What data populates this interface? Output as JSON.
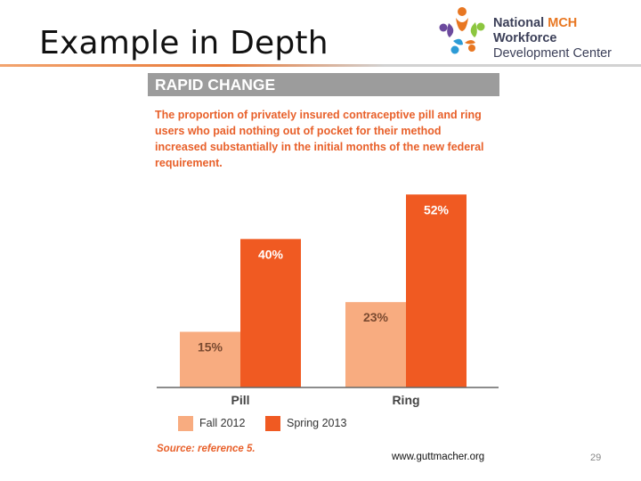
{
  "slide": {
    "title": "Example in Depth",
    "page_number": "29",
    "website": "www.guttmacher.org"
  },
  "logo": {
    "line1_prefix": "National ",
    "line1_accent": "MCH",
    "line1_suffix": " Workforce",
    "line2": "Development Center",
    "colors": [
      "#e87722",
      "#6c4a9e",
      "#2c9bd6",
      "#8cc63f",
      "#3b3f58"
    ]
  },
  "colors": {
    "fall_2012": "#f8ac80",
    "spring_2013": "#f05a22",
    "banner": "#9c9c9c",
    "accent_text": "#e8602a"
  },
  "chart_data": {
    "type": "bar",
    "banner": "RAPID CHANGE",
    "title": "The proportion of privately insured contraceptive pill and ring users who paid nothing out of pocket for their method increased substantially in the initial months of the new federal requirement.",
    "categories": [
      "Pill",
      "Ring"
    ],
    "series": [
      {
        "name": "Fall 2012",
        "values": [
          15,
          23
        ],
        "labels": [
          "15%",
          "23%"
        ]
      },
      {
        "name": "Spring 2013",
        "values": [
          40,
          52
        ],
        "labels": [
          "40%",
          "52%"
        ]
      }
    ],
    "ylim": [
      0,
      60
    ],
    "grid": false,
    "legend": "bottom-left",
    "source": "Source: reference 5."
  }
}
